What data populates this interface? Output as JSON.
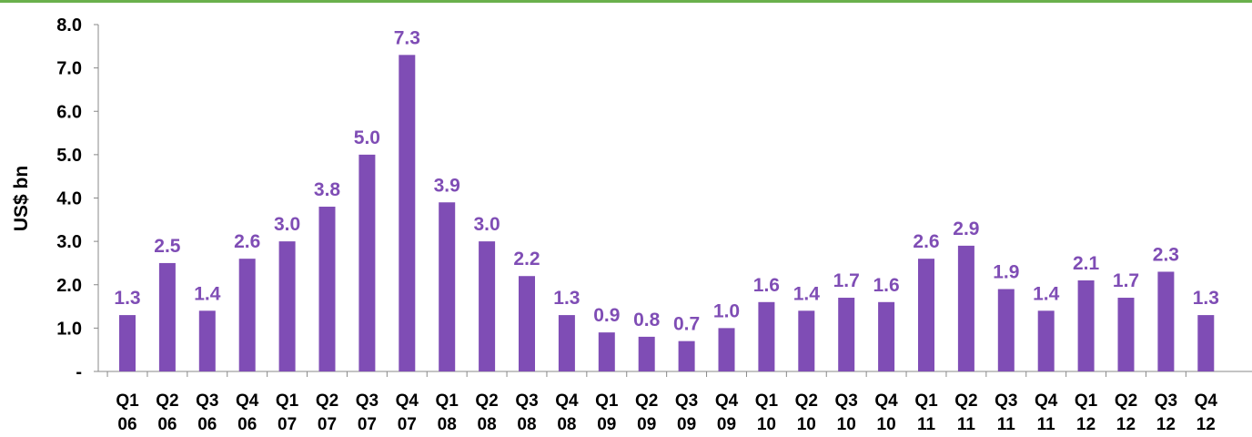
{
  "chart_data": {
    "type": "bar",
    "y_label": "US$ bn",
    "categories": [
      "Q1 06",
      "Q2 06",
      "Q3 06",
      "Q4 06",
      "Q1 07",
      "Q2 07",
      "Q3 07",
      "Q4 07",
      "Q1 08",
      "Q2 08",
      "Q3 08",
      "Q4 08",
      "Q1 09",
      "Q2 09",
      "Q3 09",
      "Q4 09",
      "Q1 10",
      "Q2 10",
      "Q3 10",
      "Q4 10",
      "Q1 11",
      "Q2 11",
      "Q3 11",
      "Q4 11",
      "Q1 12",
      "Q2 12",
      "Q3 12",
      "Q4 12"
    ],
    "values": [
      1.3,
      2.5,
      1.4,
      2.6,
      3.0,
      3.8,
      5.0,
      7.3,
      3.9,
      3.0,
      2.2,
      1.3,
      0.9,
      0.8,
      0.7,
      1.0,
      1.6,
      1.4,
      1.7,
      1.6,
      2.6,
      2.9,
      1.9,
      1.4,
      2.1,
      1.7,
      2.3,
      1.3
    ],
    "value_labels": [
      "1.3",
      "2.5",
      "1.4",
      "2.6",
      "3.0",
      "3.8",
      "5.0",
      "7.3",
      "3.9",
      "3.0",
      "2.2",
      "1.3",
      "0.9",
      "0.8",
      "0.7",
      "1.0",
      "1.6",
      "1.4",
      "1.7",
      "1.6",
      "2.6",
      "2.9",
      "1.9",
      "1.4",
      "2.1",
      "1.7",
      "2.3",
      "1.3"
    ],
    "color": "#7f4db5",
    "ylim": [
      0,
      8
    ],
    "yticks": [
      {
        "value": 0,
        "label": "-"
      },
      {
        "value": 1,
        "label": "1.0"
      },
      {
        "value": 2,
        "label": "2.0"
      },
      {
        "value": 3,
        "label": "3.0"
      },
      {
        "value": 4,
        "label": "4.0"
      },
      {
        "value": 5,
        "label": "5.0"
      },
      {
        "value": 6,
        "label": "6.0"
      },
      {
        "value": 7,
        "label": "7.0"
      },
      {
        "value": 8,
        "label": "8.0"
      }
    ],
    "grid": false
  }
}
